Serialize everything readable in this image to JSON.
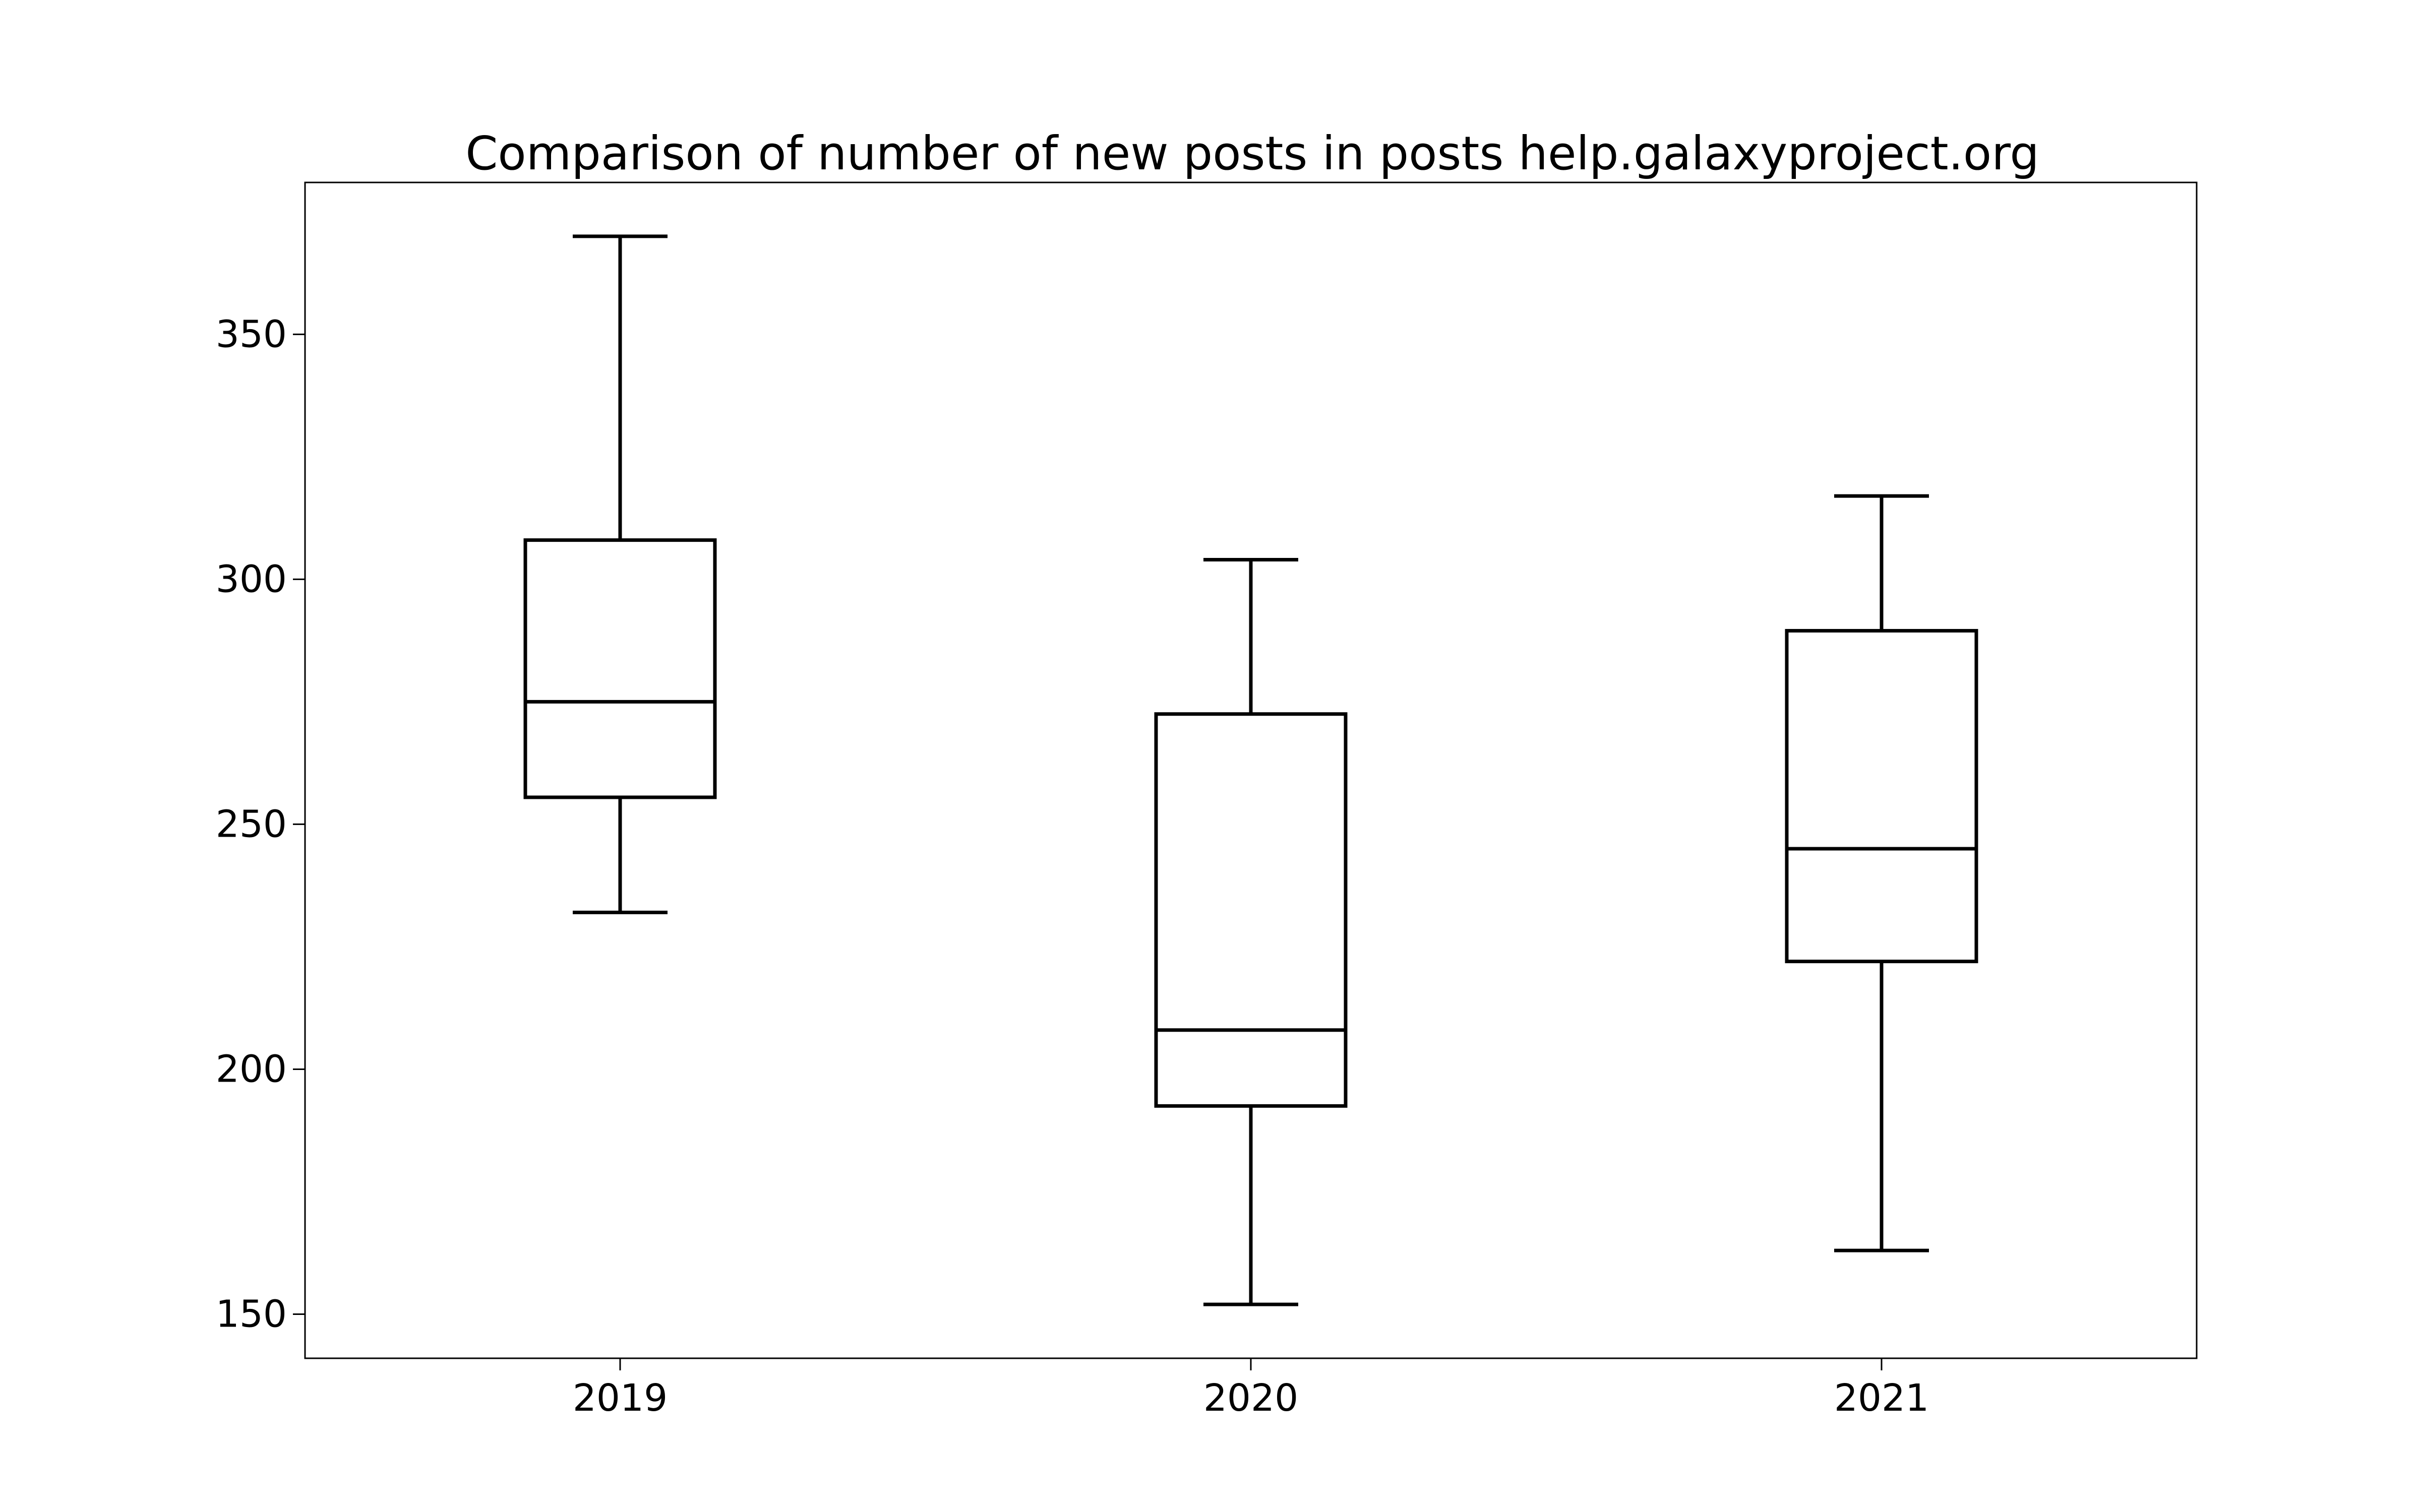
{
  "chart_data": {
    "type": "box",
    "title": "Comparison of number of new posts in posts help.galaxyproject.org",
    "xlabel": "",
    "ylabel": "",
    "categories": [
      "2019",
      "2020",
      "2021"
    ],
    "boxes": [
      {
        "category": "2019",
        "whisker_low": 232,
        "q1": 255.5,
        "median": 275,
        "q3": 308,
        "whisker_high": 370
      },
      {
        "category": "2020",
        "whisker_low": 152,
        "q1": 192.5,
        "median": 208,
        "q3": 272.5,
        "whisker_high": 304
      },
      {
        "category": "2021",
        "whisker_low": 163,
        "q1": 222,
        "median": 245,
        "q3": 289.5,
        "whisker_high": 317
      }
    ],
    "ylim": [
      141,
      381
    ],
    "yticks": [
      150,
      200,
      250,
      300,
      350
    ],
    "grid": false,
    "legend": "none",
    "colors": {
      "line": "#000000",
      "background": "#ffffff"
    }
  }
}
